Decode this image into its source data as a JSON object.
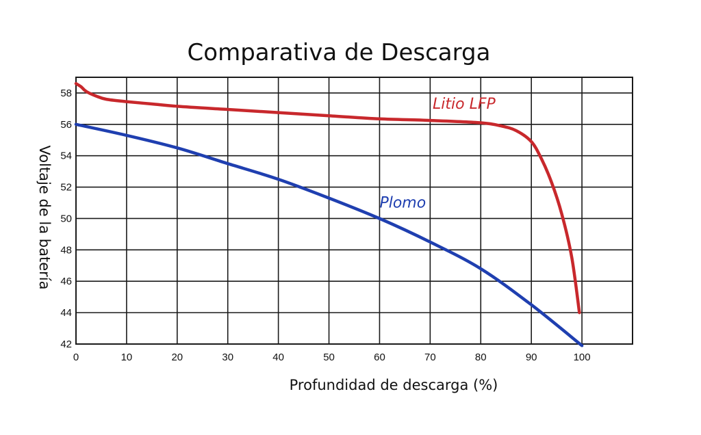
{
  "chart_data": {
    "type": "line",
    "title": "Comparativa de Descarga",
    "xlabel": "Profundidad de descarga (%)",
    "ylabel": "Voltaje de la batería",
    "xlim": [
      0,
      110
    ],
    "ylim": [
      42,
      59
    ],
    "x_ticks": [
      0,
      10,
      20,
      30,
      40,
      50,
      60,
      70,
      80,
      90,
      100
    ],
    "y_ticks": [
      42,
      44,
      46,
      48,
      50,
      52,
      54,
      56,
      58
    ],
    "grid": true,
    "series": [
      {
        "name": "Litio LFP",
        "color": "#c8282c",
        "x": [
          0,
          1,
          2,
          4,
          6,
          10,
          15,
          20,
          30,
          40,
          50,
          60,
          70,
          80,
          84,
          87,
          90,
          92,
          94,
          96,
          98,
          99.5
        ],
        "y": [
          58.6,
          58.4,
          58.1,
          57.8,
          57.6,
          57.45,
          57.3,
          57.15,
          56.95,
          56.75,
          56.55,
          56.35,
          56.25,
          56.1,
          55.9,
          55.6,
          54.9,
          53.8,
          52.3,
          50.3,
          47.5,
          44.0
        ]
      },
      {
        "name": "Plomo",
        "color": "#1f3fb0",
        "x": [
          0,
          10,
          20,
          30,
          40,
          50,
          60,
          70,
          80,
          90,
          100
        ],
        "y": [
          56.0,
          55.3,
          54.5,
          53.5,
          52.5,
          51.3,
          50.0,
          48.5,
          46.8,
          44.5,
          41.9
        ]
      }
    ]
  }
}
